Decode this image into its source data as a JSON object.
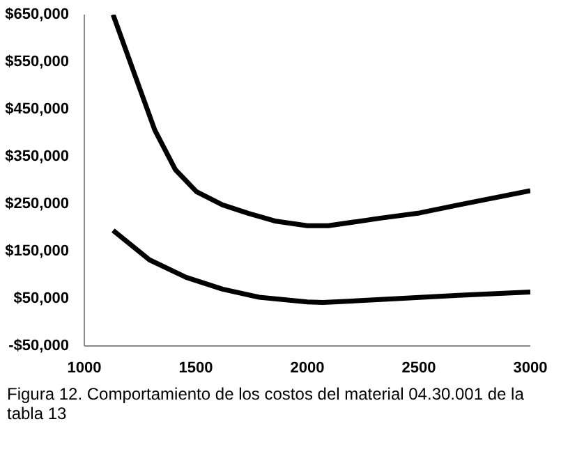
{
  "chart_data": {
    "type": "line",
    "x": [
      1129,
      1223,
      1316,
      1409,
      1503,
      1620,
      1737,
      1854,
      2000,
      2094,
      2328,
      2503,
      2678,
      3000
    ],
    "series": [
      {
        "color": "#000000",
        "values": [
          650000,
          527000,
          406000,
          322000,
          276000,
          248000,
          230000,
          214000,
          204000,
          204000,
          220000,
          231000,
          248000,
          278000
        ]
      },
      {
        "color": "#000000",
        "x": [
          1129,
          1292,
          1456,
          1620,
          1784,
          2000,
          2070,
          2328,
          2678,
          3000
        ],
        "values": [
          194000,
          132000,
          95000,
          70000,
          53000,
          43000,
          42000,
          48000,
          57000,
          64000
        ]
      }
    ],
    "xlim": [
      1000,
      3000
    ],
    "xticks": [
      1000,
      1500,
      2000,
      2500,
      3000
    ],
    "ylim": [
      -50000,
      650000
    ],
    "yticks": [
      {
        "value": -50000,
        "label": "-$50,000"
      },
      {
        "value": 50000,
        "label": "$50,000"
      },
      {
        "value": 150000,
        "label": "$150,000"
      },
      {
        "value": 250000,
        "label": "$250,000"
      },
      {
        "value": 350000,
        "label": "$350,000"
      },
      {
        "value": 450000,
        "label": "$450,000"
      },
      {
        "value": 550000,
        "label": "$550,000"
      },
      {
        "value": 650000,
        "label": "$650,000"
      }
    ],
    "grid": false,
    "marker": "none",
    "line_style": "solid",
    "annotations": [
      "Figura 12. Comportamiento de los costos del material 04.30.001 de la tabla 13"
    ]
  }
}
